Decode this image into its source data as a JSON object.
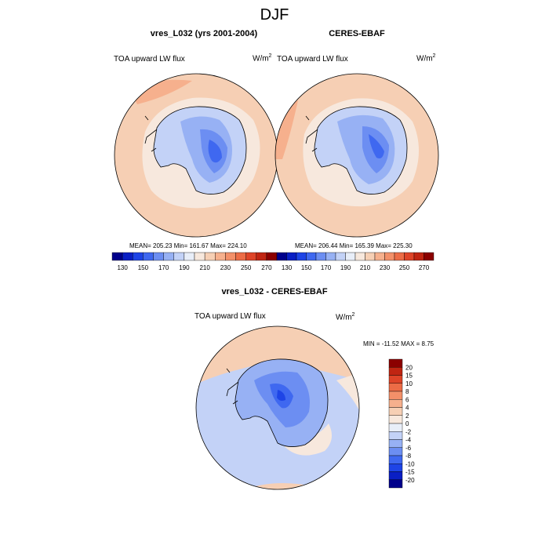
{
  "page": {
    "title": "DJF"
  },
  "colors": {
    "cool": [
      "#00008b",
      "#0a1fc4",
      "#1e44e6",
      "#3f68f0",
      "#6c8ef2",
      "#97b1f4",
      "#c3d2f7",
      "#e8eef8"
    ],
    "warm": [
      "#f7e8dd",
      "#f6cfb4",
      "#f6b08d",
      "#f39069",
      "#ec6c46",
      "#de4428",
      "#c02512",
      "#8b0000"
    ],
    "coast": "#000000",
    "outline": "#000000"
  },
  "chart_data": [
    {
      "type": "heatmap",
      "name": "model",
      "title": "vres_L032 (yrs 2001-2004)",
      "left_label": "TOA upward LW flux",
      "units_text": "W/m",
      "units_sup": "2",
      "stats_text": "MEAN= 205.23  Min= 161.67  Max= 224.10",
      "stats": {
        "mean": 205.23,
        "min": 161.67,
        "max": 224.1
      },
      "colorbar": {
        "levels": [
          130,
          140,
          150,
          160,
          170,
          180,
          190,
          200,
          210,
          220,
          230,
          240,
          250,
          260,
          270
        ],
        "tick_labels": [
          "130",
          "150",
          "170",
          "190",
          "210",
          "230",
          "250",
          "270"
        ]
      }
    },
    {
      "type": "heatmap",
      "name": "obs",
      "title": "CERES-EBAF",
      "left_label": "TOA upward LW flux",
      "units_text": "W/m",
      "units_sup": "2",
      "stats_text": "MEAN= 206.44  Min= 165.39  Max= 225.30",
      "stats": {
        "mean": 206.44,
        "min": 165.39,
        "max": 225.3
      },
      "colorbar": {
        "levels": [
          130,
          140,
          150,
          160,
          170,
          180,
          190,
          200,
          210,
          220,
          230,
          240,
          250,
          260,
          270
        ],
        "tick_labels": [
          "130",
          "150",
          "170",
          "190",
          "210",
          "230",
          "250",
          "270"
        ]
      }
    },
    {
      "type": "heatmap",
      "name": "difference",
      "title": "vres_L032 - CERES-EBAF",
      "left_label": "TOA upward LW flux",
      "units_text": "W/m",
      "units_sup": "2",
      "stats_text": "MIN = -11.52 MAX =   8.75",
      "stats": {
        "min": -11.52,
        "max": 8.75
      },
      "colorbar": {
        "orientation": "vertical",
        "tick_labels": [
          "20",
          "15",
          "10",
          "8",
          "6",
          "4",
          "2",
          "0",
          "-2",
          "-4",
          "-6",
          "-8",
          "-10",
          "-15",
          "-20"
        ]
      }
    }
  ]
}
